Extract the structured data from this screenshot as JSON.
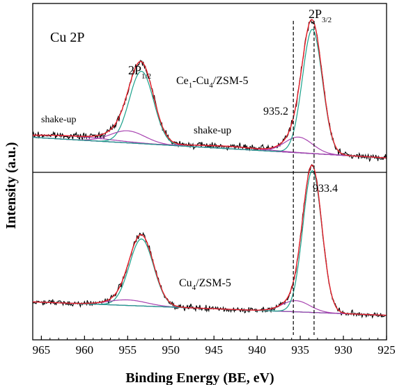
{
  "chart_data": {
    "type": "line",
    "title": "",
    "xlabel": "Binding Energy (BE, eV)",
    "ylabel": "Intensity (a.u.)",
    "xlim": [
      966,
      925
    ],
    "x_reversed": true,
    "xticks": [
      965,
      960,
      955,
      950,
      945,
      940,
      935,
      930,
      925
    ],
    "y_ticks_shown": false,
    "grid": false,
    "legend": "none",
    "panels": [
      {
        "panel": "top",
        "corner_label": "Cu 2P",
        "sample_label": {
          "main": "Ce",
          "s1": "1",
          "mid": "-Cu",
          "s2": "4",
          "tail": "/ZSM-5"
        },
        "peak_labels": [
          {
            "base": "2P",
            "sub": "1/2",
            "x": 953.4
          },
          {
            "base": "2P",
            "sub": "3/2",
            "x": 933.6
          }
        ],
        "annotations": [
          {
            "text": "shake-up",
            "x": 962.5
          },
          {
            "text": "shake-up",
            "x": 943.8
          },
          {
            "text": "935.2",
            "x": 935.2
          }
        ],
        "background": {
          "x": [
            966,
            925
          ],
          "y": [
            0.17,
            0.0
          ]
        },
        "peaks": [
          {
            "name": "shake-up",
            "center": 961.5,
            "height": 0.03,
            "width": 4.5
          },
          {
            "name": "2P1/2",
            "center": 953.4,
            "height": 0.6,
            "width": 1.4
          },
          {
            "name": "2P1/2 satellite",
            "center": 955.0,
            "height": 0.1,
            "width": 2.0
          },
          {
            "name": "shake-up",
            "center": 943.5,
            "height": 0.02,
            "width": 4.0
          },
          {
            "name": "935.2",
            "center": 935.2,
            "height": 0.13,
            "width": 1.6
          },
          {
            "name": "2P3/2",
            "center": 933.6,
            "height": 1.03,
            "width": 1.15
          }
        ],
        "ylim": [
          -0.12,
          1.28
        ]
      },
      {
        "panel": "bottom",
        "sample_label": {
          "main": "Cu",
          "s1": "4",
          "tail": "/ZSM-5"
        },
        "annotations": [
          {
            "text": "933.4",
            "x": 933.4
          }
        ],
        "background": {
          "x": [
            966,
            925
          ],
          "y": [
            0.12,
            0.0
          ]
        },
        "peaks": [
          {
            "name": "2P1/2",
            "center": 953.4,
            "height": 0.6,
            "width": 1.4
          },
          {
            "name": "2P1/2 satellite",
            "center": 955.0,
            "height": 0.05,
            "width": 2.2
          },
          {
            "name": "satellite",
            "center": 935.5,
            "height": 0.1,
            "width": 1.6
          },
          {
            "name": "2P3/2",
            "center": 933.6,
            "height": 1.27,
            "width": 1.1
          }
        ],
        "ylim": [
          -0.22,
          1.28
        ]
      }
    ],
    "reference_lines": [
      935.8,
      933.4
    ],
    "curve_colors": {
      "raw": "#000000",
      "envelope": "#e8202b",
      "main_fit": "#1aa08a",
      "satellite_fit": "#a742b0",
      "background": "#3a5fc4"
    }
  }
}
